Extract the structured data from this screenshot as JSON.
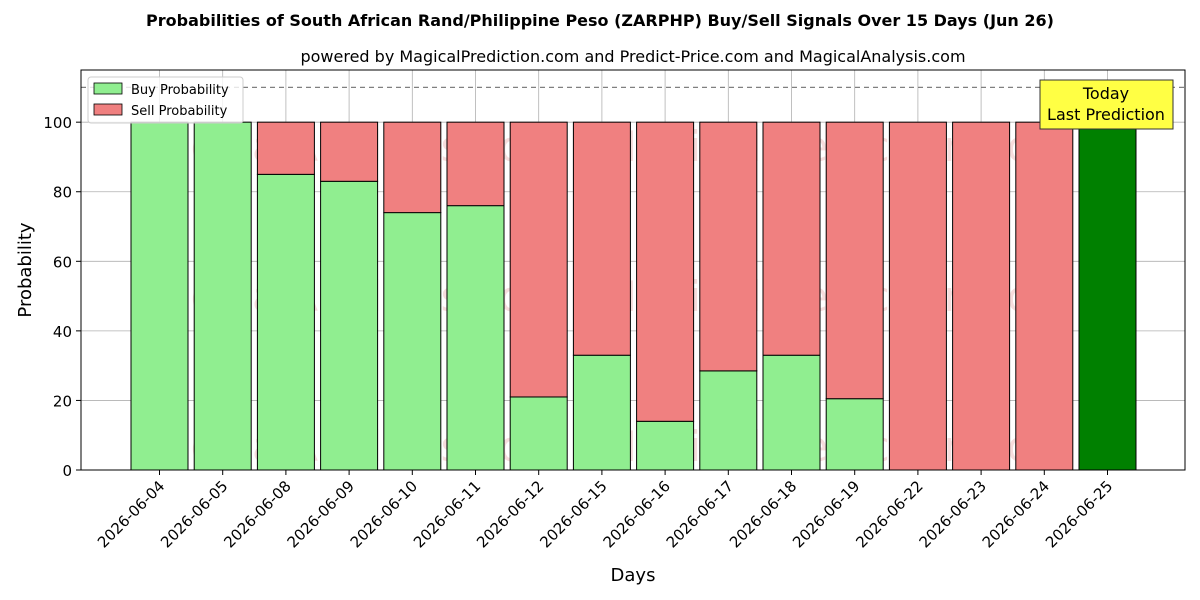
{
  "chart_data": {
    "type": "bar",
    "stacked": true,
    "title": "Probabilities of South African Rand/Philippine Peso (ZARPHP) Buy/Sell Signals Over 15 Days (Jun 26)",
    "subtitle": "powered by MagicalPrediction.com and Predict-Price.com and MagicalAnalysis.com",
    "xlabel": "Days",
    "ylabel": "Probability",
    "ylim": [
      0,
      115
    ],
    "yticks": [
      0,
      20,
      40,
      60,
      80,
      100
    ],
    "reference_line": 110,
    "categories": [
      "2026-06-04",
      "2026-06-05",
      "2026-06-08",
      "2026-06-09",
      "2026-06-10",
      "2026-06-11",
      "2026-06-12",
      "2026-06-15",
      "2026-06-16",
      "2026-06-17",
      "2026-06-18",
      "2026-06-19",
      "2026-06-22",
      "2026-06-23",
      "2026-06-24",
      "2026-06-25"
    ],
    "series": [
      {
        "name": "Buy Probability",
        "values": [
          100,
          100,
          85,
          83,
          74,
          76,
          21,
          33,
          14,
          28.5,
          33,
          20.5,
          0,
          0,
          0,
          100
        ]
      },
      {
        "name": "Sell Probability",
        "values": [
          0,
          0,
          15,
          17,
          26,
          24,
          79,
          67,
          86,
          71.5,
          67,
          79.5,
          100,
          100,
          100,
          0
        ]
      }
    ],
    "highlight_index": 15,
    "legend_position": "top-left",
    "grid": true,
    "annotation": {
      "line1": "Today",
      "line2": "Last Prediction"
    },
    "watermarks": [
      "MagicalAnalysis.com",
      "MagicalPrediction.com"
    ],
    "colors": {
      "buy": "#90ee90",
      "sell": "#f08080",
      "highlight": "#008000",
      "annotation_bg": "#ffff44",
      "grid": "#b0b0b0",
      "ref_line": "#808080"
    }
  }
}
